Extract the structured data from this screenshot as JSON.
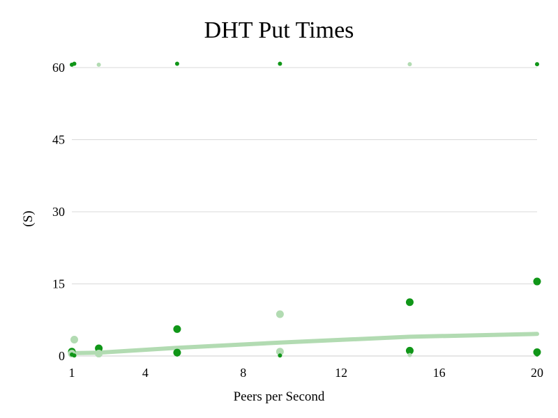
{
  "chart_data": {
    "type": "scatter",
    "title": "DHT Put Times",
    "xlabel": "Peers per Second",
    "ylabel": "(S)",
    "xlim": [
      1,
      20
    ],
    "ylim": [
      0,
      60
    ],
    "x_ticks": [
      1,
      4,
      8,
      12,
      16,
      20
    ],
    "y_ticks": [
      0,
      15,
      30,
      45,
      60
    ],
    "grid": "horizontal",
    "series": [
      {
        "color": "#109618",
        "marker": "large-dot",
        "points": [
          {
            "x": 1,
            "y": 0.9
          },
          {
            "x": 2.1,
            "y": 1.6
          },
          {
            "x": 5.3,
            "y": 5.6
          },
          {
            "x": 5.3,
            "y": 0.7
          },
          {
            "x": 14.8,
            "y": 11.2
          },
          {
            "x": 14.8,
            "y": 1.1
          },
          {
            "x": 20,
            "y": 15.5
          },
          {
            "x": 20,
            "y": 0.8
          }
        ]
      },
      {
        "color": "#109618",
        "marker": "small-dot",
        "points": [
          {
            "x": 1,
            "y": 60.6
          },
          {
            "x": 1.1,
            "y": 60.8
          },
          {
            "x": 5.3,
            "y": 60.8
          },
          {
            "x": 9.5,
            "y": 60.8
          },
          {
            "x": 20,
            "y": 60.7
          },
          {
            "x": 1,
            "y": 0.3
          },
          {
            "x": 1.1,
            "y": 0.1
          },
          {
            "x": 5.3,
            "y": 0.3
          },
          {
            "x": 9.5,
            "y": 0.1
          },
          {
            "x": 20,
            "y": 0.3
          }
        ]
      },
      {
        "color": "#b2dbb2",
        "marker": "large-dot",
        "points": [
          {
            "x": 1,
            "y": 0.5
          },
          {
            "x": 1.1,
            "y": 3.4
          },
          {
            "x": 2.1,
            "y": 0.5
          },
          {
            "x": 9.5,
            "y": 8.7
          },
          {
            "x": 9.5,
            "y": 0.9
          }
        ]
      },
      {
        "color": "#b2dbb2",
        "marker": "small-dot",
        "points": [
          {
            "x": 2.1,
            "y": 60.6
          },
          {
            "x": 14.8,
            "y": 60.7
          },
          {
            "x": 14.8,
            "y": 0.2
          }
        ]
      },
      {
        "color": "#b2dbb2",
        "marker": "trend-line",
        "points": [
          {
            "x": 1,
            "y": 0.6
          },
          {
            "x": 2.1,
            "y": 0.7
          },
          {
            "x": 5.3,
            "y": 1.7
          },
          {
            "x": 9.5,
            "y": 2.8
          },
          {
            "x": 14.8,
            "y": 4.0
          },
          {
            "x": 20,
            "y": 4.6
          }
        ]
      }
    ]
  }
}
